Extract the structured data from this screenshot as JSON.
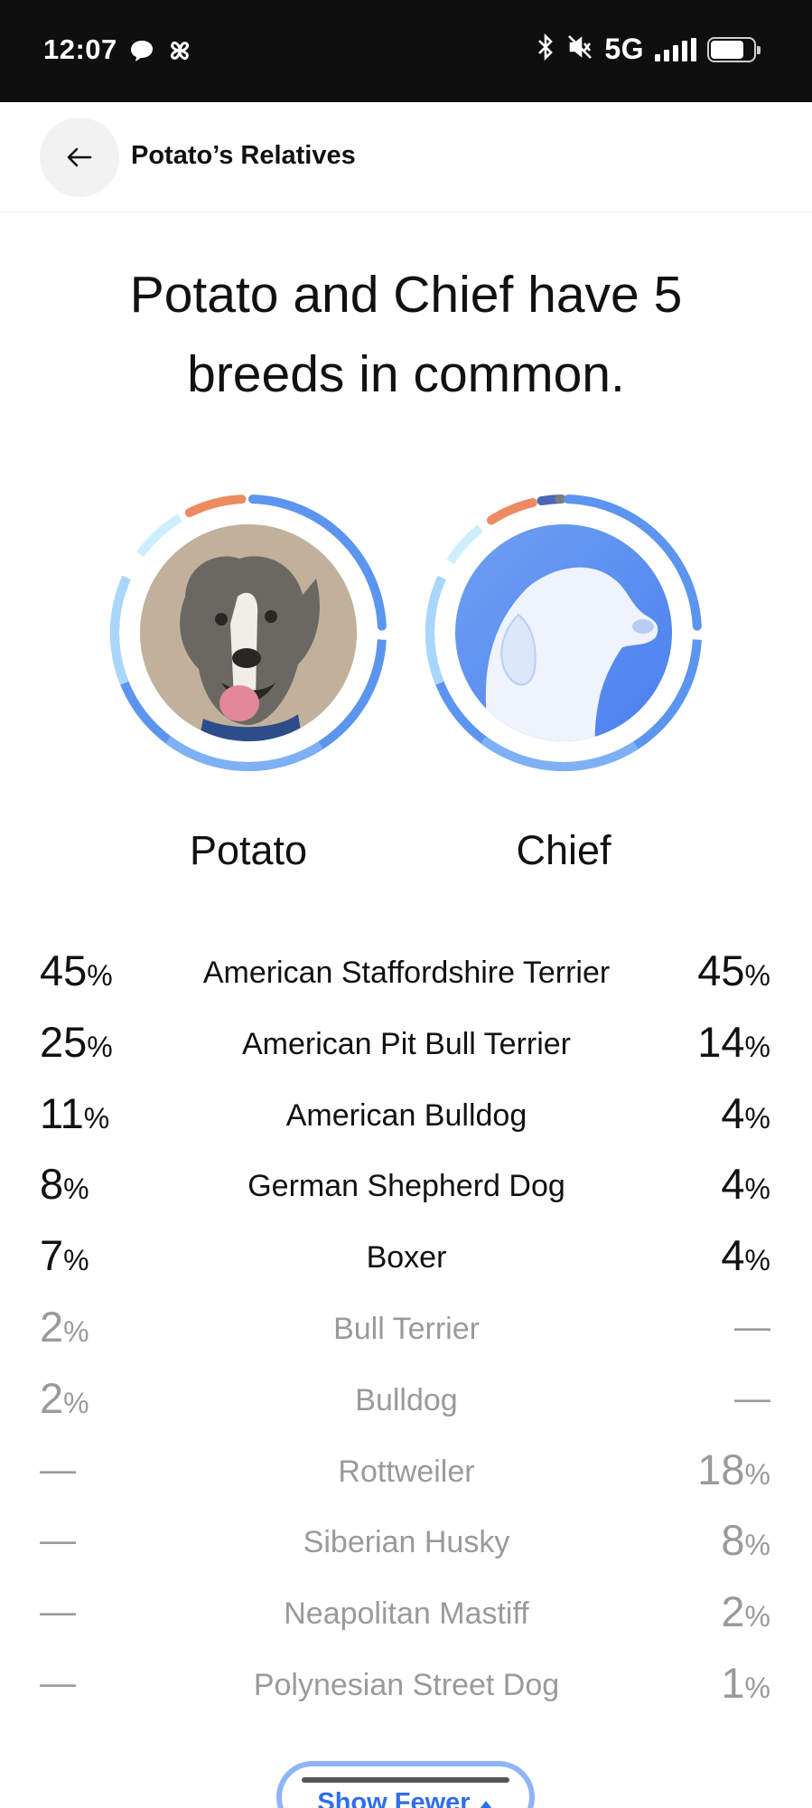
{
  "status_bar": {
    "time": "12:07",
    "network": "5G",
    "left_icons": [
      "chat-bubble-icon",
      "pinwheel-icon"
    ],
    "right_icons": [
      "bluetooth-icon",
      "mute-icon",
      "signal-icon",
      "battery-icon"
    ]
  },
  "nav": {
    "title": "Potato’s Relatives",
    "back_icon": "arrow-left-icon"
  },
  "headline": "Potato and Chief have 5 breeds in common.",
  "dogs": {
    "potato": {
      "name": "Potato"
    },
    "chief": {
      "name": "Chief"
    }
  },
  "colors": {
    "ring_blue": "#5b95f0",
    "ring_light_blue": "#9fd0fb",
    "ring_orange": "#ec8b61",
    "ring_navy": "#4a66b4",
    "ring_gray": "#7c7c7c",
    "gray_text": "#9a9a9a",
    "accent": "#2f6ee8"
  },
  "breeds": [
    {
      "name": "American Staffordshire Terrier",
      "potato": "45",
      "chief": "45",
      "common": true
    },
    {
      "name": "American Pit Bull Terrier",
      "potato": "25",
      "chief": "14",
      "common": true
    },
    {
      "name": "American Bulldog",
      "potato": "11",
      "chief": "4",
      "common": true
    },
    {
      "name": "German Shepherd Dog",
      "potato": "8",
      "chief": "4",
      "common": true
    },
    {
      "name": "Boxer",
      "potato": "7",
      "chief": "4",
      "common": true
    },
    {
      "name": "Bull Terrier",
      "potato": "2",
      "chief": "—",
      "common": false
    },
    {
      "name": "Bulldog",
      "potato": "2",
      "chief": "—",
      "common": false
    },
    {
      "name": "Rottweiler",
      "potato": "—",
      "chief": "18",
      "common": false
    },
    {
      "name": "Siberian Husky",
      "potato": "—",
      "chief": "8",
      "common": false
    },
    {
      "name": "Neapolitan Mastiff",
      "potato": "—",
      "chief": "2",
      "common": false
    },
    {
      "name": "Polynesian Street Dog",
      "potato": "—",
      "chief": "1",
      "common": false
    }
  ],
  "percent_symbol": "%",
  "show_fewer": {
    "label": "Show Fewer",
    "icon": "triangle-up-icon"
  }
}
